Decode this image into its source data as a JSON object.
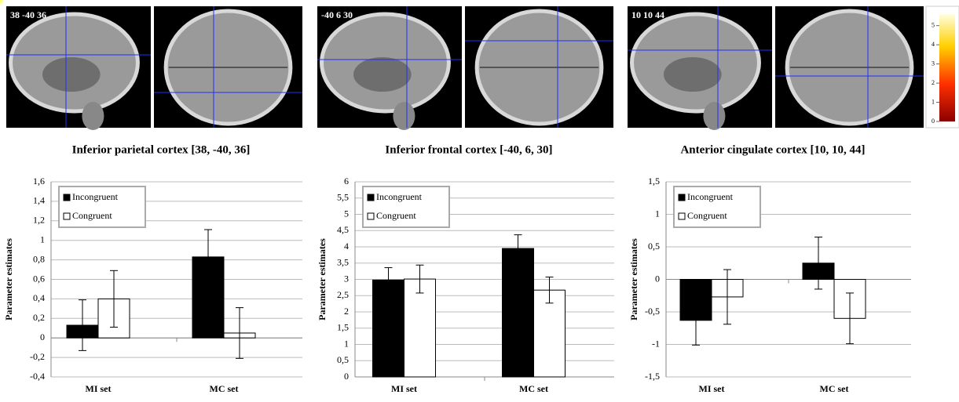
{
  "chart_data": [
    {
      "type": "bar",
      "image_label": "38 -40 36",
      "title": "Inferior parietal cortex [38, -40, 36]",
      "ylabel": "Parameter estimates",
      "categories": [
        "MI set",
        "MC set"
      ],
      "series": [
        {
          "name": "Incongruent",
          "color": "#000000",
          "values": [
            0.13,
            0.83
          ],
          "errors": [
            0.26,
            0.28
          ]
        },
        {
          "name": "Congruent",
          "color": "#ffffff",
          "values": [
            0.4,
            0.05
          ],
          "errors": [
            0.29,
            0.26
          ]
        }
      ],
      "ylim": [
        -0.4,
        1.6
      ],
      "yticks": [
        {
          "value": -0.4,
          "label": "-0,4"
        },
        {
          "value": -0.2,
          "label": "-0,2"
        },
        0,
        {
          "value": 0.2,
          "label": "0,2"
        },
        {
          "value": 0.4,
          "label": "0,4"
        },
        {
          "value": 0.6,
          "label": "0,6"
        },
        {
          "value": 0.8,
          "label": "0,8"
        },
        1,
        {
          "value": 1.2,
          "label": "1,2"
        },
        {
          "value": 1.4,
          "label": "1,4"
        },
        {
          "value": 1.6,
          "label": "1,6"
        }
      ],
      "grid": true,
      "legend": "upper left"
    },
    {
      "type": "bar",
      "image_label": "-40 6 30",
      "title": "Inferior frontal cortex [-40, 6, 30]",
      "ylabel": "Parameter estimates",
      "categories": [
        "MI set",
        "MC set"
      ],
      "series": [
        {
          "name": "Incongruent",
          "color": "#000000",
          "values": [
            2.98,
            3.95
          ],
          "errors": [
            0.38,
            0.42
          ]
        },
        {
          "name": "Congruent",
          "color": "#ffffff",
          "values": [
            3.01,
            2.67
          ],
          "errors": [
            0.43,
            0.4
          ]
        }
      ],
      "ylim": [
        0,
        6
      ],
      "yticks": [
        0,
        {
          "value": 0.5,
          "label": "0,5"
        },
        1,
        {
          "value": 1.5,
          "label": "1,5"
        },
        2,
        {
          "value": 2.5,
          "label": "2,5"
        },
        3,
        {
          "value": 3.5,
          "label": "3,5"
        },
        4,
        {
          "value": 4.5,
          "label": "4,5"
        },
        5,
        {
          "value": 5.5,
          "label": "5,5"
        },
        6
      ],
      "grid": true,
      "legend": "upper left"
    },
    {
      "type": "bar",
      "image_label": "10 10 44",
      "title": "Anterior cingulate cortex [10, 10, 44]",
      "ylabel": "Parameter estimates",
      "categories": [
        "MI set",
        "MC set"
      ],
      "series": [
        {
          "name": "Incongruent",
          "color": "#000000",
          "values": [
            -0.63,
            0.25
          ],
          "errors": [
            0.38,
            0.4
          ]
        },
        {
          "name": "Congruent",
          "color": "#ffffff",
          "values": [
            -0.27,
            -0.6
          ],
          "errors": [
            0.42,
            0.39
          ]
        }
      ],
      "ylim": [
        -1.5,
        1.5
      ],
      "yticks": [
        {
          "value": -1.5,
          "label": "-1,5"
        },
        -1,
        {
          "value": -0.5,
          "label": "-0,5"
        },
        0,
        {
          "value": 0.5,
          "label": "0,5"
        },
        1,
        {
          "value": 1.5,
          "label": "1,5"
        }
      ],
      "grid": true,
      "legend": "upper left"
    }
  ],
  "colorbar": {
    "lim": [
      0,
      5.6
    ],
    "ticks": [
      0,
      1,
      2,
      3,
      4,
      5
    ]
  }
}
